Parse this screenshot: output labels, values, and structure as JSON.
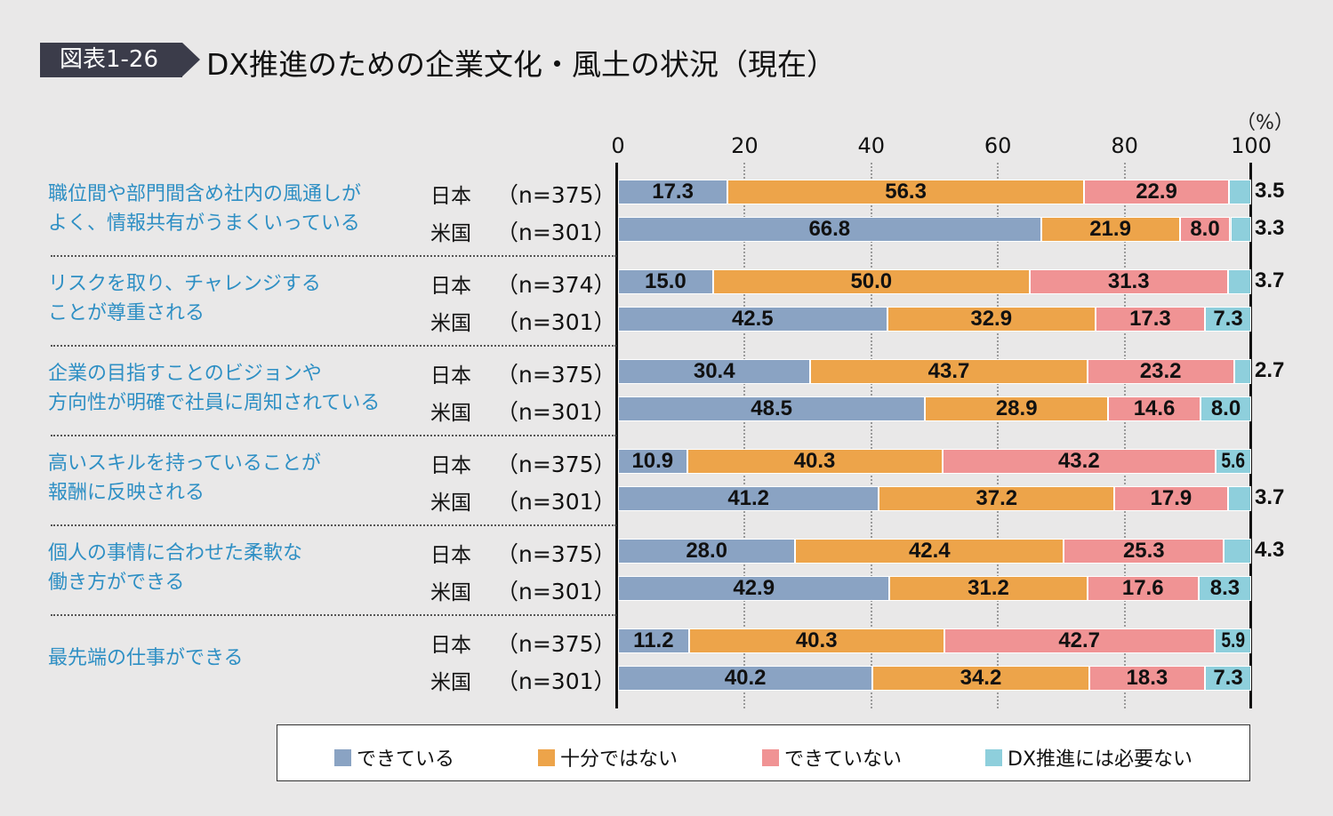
{
  "header": {
    "figure_number": "図表1-26",
    "title": "DX推進のための企業文化・風土の状況（現在）"
  },
  "chart_data": {
    "type": "bar",
    "stacked": true,
    "orientation": "horizontal",
    "unit": "（%）",
    "xlim": [
      0,
      100
    ],
    "xticks": [
      "0",
      "20",
      "40",
      "60",
      "80",
      "100"
    ],
    "grid": true,
    "legend_position": "bottom",
    "series": [
      {
        "name": "できている",
        "color": "#8aa3c3"
      },
      {
        "name": "十分ではない",
        "color": "#eda44a"
      },
      {
        "name": "できていない",
        "color": "#f09394"
      },
      {
        "name": "DX推進には必要ない",
        "color": "#8ecfdc"
      }
    ],
    "groups": [
      {
        "label_lines": [
          "職位間や部門間含め社内の風通しが",
          "よく、情報共有がうまくいっている"
        ],
        "rows": [
          {
            "country": "日本",
            "n": "（n=375）",
            "values": [
              17.3,
              56.3,
              22.9,
              3.5
            ]
          },
          {
            "country": "米国",
            "n": "（n=301）",
            "values": [
              66.8,
              21.9,
              8.0,
              3.3
            ]
          }
        ]
      },
      {
        "label_lines": [
          "リスクを取り、チャレンジする",
          "ことが尊重される"
        ],
        "rows": [
          {
            "country": "日本",
            "n": "（n=374）",
            "values": [
              15.0,
              50.0,
              31.3,
              3.7
            ]
          },
          {
            "country": "米国",
            "n": "（n=301）",
            "values": [
              42.5,
              32.9,
              17.3,
              7.3
            ]
          }
        ]
      },
      {
        "label_lines": [
          "企業の目指すことのビジョンや",
          "方向性が明確で社員に周知されている"
        ],
        "rows": [
          {
            "country": "日本",
            "n": "（n=375）",
            "values": [
              30.4,
              43.7,
              23.2,
              2.7
            ]
          },
          {
            "country": "米国",
            "n": "（n=301）",
            "values": [
              48.5,
              28.9,
              14.6,
              8.0
            ]
          }
        ]
      },
      {
        "label_lines": [
          "高いスキルを持っていることが",
          "報酬に反映される"
        ],
        "rows": [
          {
            "country": "日本",
            "n": "（n=375）",
            "values": [
              10.9,
              40.3,
              43.2,
              5.6
            ]
          },
          {
            "country": "米国",
            "n": "（n=301）",
            "values": [
              41.2,
              37.2,
              17.9,
              3.7
            ]
          }
        ]
      },
      {
        "label_lines": [
          "個人の事情に合わせた柔軟な",
          "働き方ができる"
        ],
        "rows": [
          {
            "country": "日本",
            "n": "（n=375）",
            "values": [
              28.0,
              42.4,
              25.3,
              4.3
            ]
          },
          {
            "country": "米国",
            "n": "（n=301）",
            "values": [
              42.9,
              31.2,
              17.6,
              8.3
            ]
          }
        ]
      },
      {
        "label_lines": [
          "最先端の仕事ができる"
        ],
        "rows": [
          {
            "country": "日本",
            "n": "（n=375）",
            "values": [
              11.2,
              40.3,
              42.7,
              5.9
            ]
          },
          {
            "country": "米国",
            "n": "（n=301）",
            "values": [
              40.2,
              34.2,
              18.3,
              7.3
            ]
          }
        ]
      }
    ]
  }
}
